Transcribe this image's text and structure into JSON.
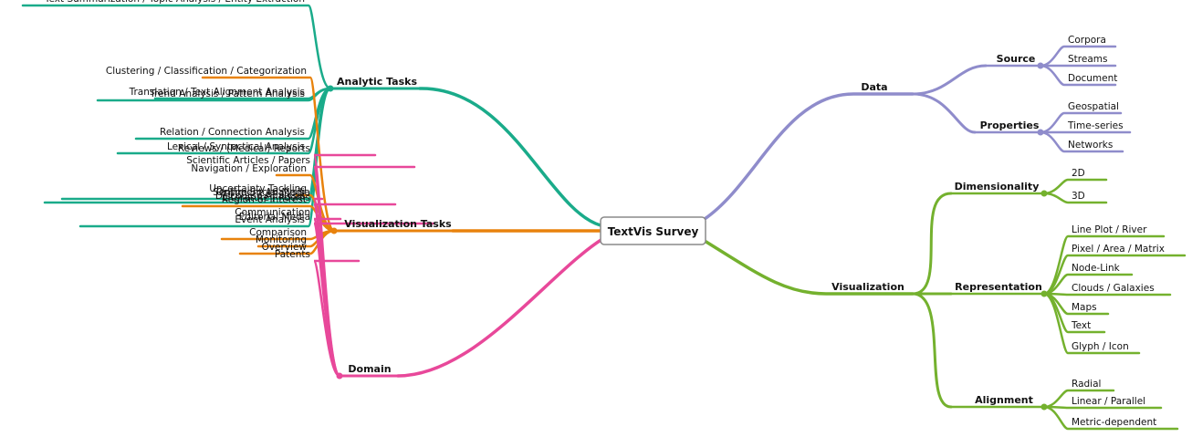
{
  "center": "TextVis Survey",
  "colors": {
    "analytic": "#1aab8a",
    "vis_tasks": "#e8820c",
    "domain": "#e8489a",
    "data": "#8f8ccb",
    "visualization": "#74b12e"
  },
  "branches": {
    "analytic": {
      "label": "Analytic Tasks",
      "items": [
        "Text Summarization / Topic Analysis  / Entity Extraction",
        "Discourse Analysis",
        "Sentiment Analysis",
        "Event Analysis",
        "Trend Analysis / Pattern Analysis",
        "Lexical / Syntactical Analysis",
        "Relation / Connection Analysis",
        "Translation / Text Alignment Analysis"
      ]
    },
    "vis_tasks": {
      "label": "Visualization Tasks",
      "items": [
        "Region of Interest",
        "Clustering / Classification / Categorization",
        "Comparison",
        "Overview",
        "Monitoring",
        "Navigation / Exploration",
        "Uncertainty Tackling"
      ]
    },
    "domain": {
      "label": "Domain",
      "items": [
        "Online Social Media",
        "Communication",
        "Patents",
        "Reviews / (Medical) Reports",
        "Literature / Poems",
        "Scientific Articles / Papers",
        "Editorial Media"
      ]
    },
    "data": {
      "label": "Data",
      "groups": [
        {
          "label": "Source",
          "items": [
            "Corpora",
            "Streams",
            "Document"
          ]
        },
        {
          "label": "Properties",
          "items": [
            "Geospatial",
            "Time-series",
            "Networks"
          ]
        }
      ]
    },
    "visualization": {
      "label": "Visualization",
      "groups": [
        {
          "label": "Dimensionality",
          "items": [
            "2D",
            "3D"
          ]
        },
        {
          "label": "Representation",
          "items": [
            "Line Plot / River",
            "Pixel / Area / Matrix",
            "Node-Link",
            "Clouds / Galaxies",
            "Maps",
            "Text",
            "Glyph / Icon"
          ]
        },
        {
          "label": "Alignment",
          "items": [
            "Radial",
            "Linear / Parallel",
            "Metric-dependent"
          ]
        }
      ]
    }
  }
}
